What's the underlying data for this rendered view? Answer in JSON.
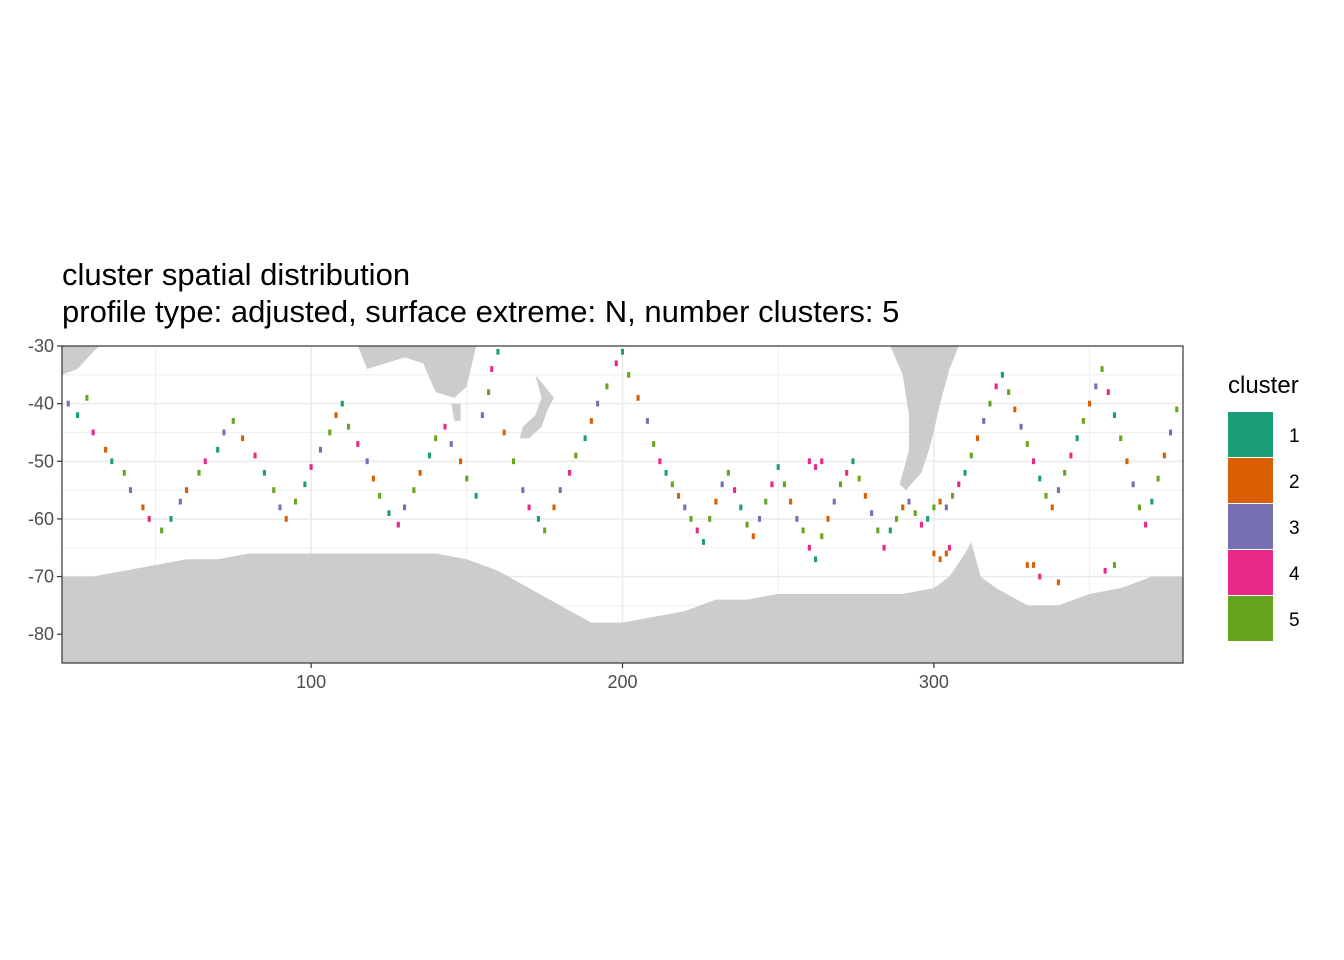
{
  "chart_data": {
    "type": "heatmap",
    "title": "cluster spatial distribution",
    "subtitle": "profile type: adjusted, surface extreme: N, number clusters: 5",
    "xlabel": "",
    "ylabel": "",
    "xlim": [
      20,
      380
    ],
    "ylim": [
      -85,
      -30
    ],
    "x_ticks": [
      100,
      200,
      300
    ],
    "y_ticks": [
      -30,
      -40,
      -50,
      -60,
      -70,
      -80
    ],
    "x_tick_labels": [
      "100",
      "200",
      "300"
    ],
    "y_tick_labels": [
      "-30",
      "-40",
      "-50",
      "-60",
      "-70",
      "-80"
    ],
    "grid": true,
    "cell_size_deg": 1,
    "land_color": "#cccccc",
    "legend": {
      "title": "cluster",
      "placement": "right",
      "entries": [
        {
          "label": "1",
          "color": "#1b9e77"
        },
        {
          "label": "2",
          "color": "#d95f02"
        },
        {
          "label": "3",
          "color": "#7570b3"
        },
        {
          "label": "4",
          "color": "#e7298a"
        },
        {
          "label": "5",
          "color": "#66a61e"
        }
      ]
    },
    "antarctica_coast": [
      [
        20,
        -70
      ],
      [
        30,
        -70
      ],
      [
        40,
        -69
      ],
      [
        50,
        -68
      ],
      [
        60,
        -67
      ],
      [
        70,
        -67
      ],
      [
        80,
        -66
      ],
      [
        90,
        -66
      ],
      [
        100,
        -66
      ],
      [
        110,
        -66
      ],
      [
        120,
        -66
      ],
      [
        130,
        -66
      ],
      [
        140,
        -66
      ],
      [
        150,
        -67
      ],
      [
        160,
        -69
      ],
      [
        170,
        -72
      ],
      [
        180,
        -75
      ],
      [
        190,
        -78
      ],
      [
        200,
        -78
      ],
      [
        210,
        -77
      ],
      [
        220,
        -76
      ],
      [
        230,
        -74
      ],
      [
        240,
        -74
      ],
      [
        250,
        -73
      ],
      [
        260,
        -73
      ],
      [
        270,
        -73
      ],
      [
        280,
        -73
      ],
      [
        290,
        -73
      ],
      [
        300,
        -72
      ],
      [
        305,
        -70
      ],
      [
        310,
        -66
      ],
      [
        312,
        -64
      ],
      [
        315,
        -70
      ],
      [
        320,
        -72
      ],
      [
        330,
        -75
      ],
      [
        340,
        -75
      ],
      [
        350,
        -73
      ],
      [
        360,
        -72
      ],
      [
        370,
        -70
      ],
      [
        380,
        -70
      ]
    ],
    "land_masses": [
      {
        "name": "south-america",
        "points": [
          [
            286,
            -30
          ],
          [
            290,
            -35
          ],
          [
            292,
            -42
          ],
          [
            292,
            -48
          ],
          [
            289,
            -54
          ],
          [
            291,
            -55
          ],
          [
            296,
            -52
          ],
          [
            299,
            -47
          ],
          [
            302,
            -40
          ],
          [
            305,
            -34
          ],
          [
            308,
            -30
          ]
        ]
      },
      {
        "name": "australia",
        "points": [
          [
            115,
            -30
          ],
          [
            118,
            -34
          ],
          [
            130,
            -32
          ],
          [
            136,
            -33
          ],
          [
            140,
            -38
          ],
          [
            146,
            -39
          ],
          [
            150,
            -37
          ],
          [
            153,
            -30
          ]
        ]
      },
      {
        "name": "tasmania",
        "points": [
          [
            145,
            -40
          ],
          [
            148,
            -40
          ],
          [
            148,
            -43
          ],
          [
            146,
            -43
          ]
        ]
      },
      {
        "name": "new-zealand",
        "points": [
          [
            172,
            -35
          ],
          [
            175,
            -37
          ],
          [
            178,
            -39
          ],
          [
            176,
            -41
          ],
          [
            174,
            -44
          ],
          [
            170,
            -46
          ],
          [
            167,
            -46
          ],
          [
            168,
            -44
          ],
          [
            172,
            -42
          ],
          [
            174,
            -39
          ]
        ]
      },
      {
        "name": "africa-tip",
        "points": [
          [
            20,
            -30
          ],
          [
            20,
            -35
          ],
          [
            25,
            -34
          ],
          [
            30,
            -31
          ],
          [
            32,
            -30
          ]
        ]
      }
    ],
    "cluster_cells_note": "lon/lat/cluster triples, one per 1-degree cell",
    "cluster_cells": [
      [
        22,
        -40,
        3
      ],
      [
        25,
        -42,
        1
      ],
      [
        28,
        -39,
        5
      ],
      [
        30,
        -45,
        4
      ],
      [
        34,
        -48,
        2
      ],
      [
        36,
        -50,
        1
      ],
      [
        40,
        -52,
        5
      ],
      [
        42,
        -55,
        3
      ],
      [
        46,
        -58,
        2
      ],
      [
        48,
        -60,
        4
      ],
      [
        52,
        -62,
        5
      ],
      [
        55,
        -60,
        1
      ],
      [
        58,
        -57,
        3
      ],
      [
        60,
        -55,
        2
      ],
      [
        64,
        -52,
        5
      ],
      [
        66,
        -50,
        4
      ],
      [
        70,
        -48,
        1
      ],
      [
        72,
        -45,
        3
      ],
      [
        75,
        -43,
        5
      ],
      [
        78,
        -46,
        2
      ],
      [
        82,
        -49,
        4
      ],
      [
        85,
        -52,
        1
      ],
      [
        88,
        -55,
        5
      ],
      [
        90,
        -58,
        3
      ],
      [
        92,
        -60,
        2
      ],
      [
        95,
        -57,
        5
      ],
      [
        98,
        -54,
        1
      ],
      [
        100,
        -51,
        4
      ],
      [
        103,
        -48,
        3
      ],
      [
        106,
        -45,
        5
      ],
      [
        108,
        -42,
        2
      ],
      [
        110,
        -40,
        1
      ],
      [
        112,
        -44,
        5
      ],
      [
        115,
        -47,
        4
      ],
      [
        118,
        -50,
        3
      ],
      [
        120,
        -53,
        2
      ],
      [
        122,
        -56,
        5
      ],
      [
        125,
        -59,
        1
      ],
      [
        128,
        -61,
        4
      ],
      [
        130,
        -58,
        3
      ],
      [
        133,
        -55,
        5
      ],
      [
        135,
        -52,
        2
      ],
      [
        138,
        -49,
        1
      ],
      [
        140,
        -46,
        5
      ],
      [
        143,
        -44,
        4
      ],
      [
        145,
        -47,
        3
      ],
      [
        148,
        -50,
        2
      ],
      [
        150,
        -53,
        5
      ],
      [
        153,
        -56,
        1
      ],
      [
        155,
        -42,
        3
      ],
      [
        157,
        -38,
        5
      ],
      [
        158,
        -34,
        4
      ],
      [
        160,
        -31,
        1
      ],
      [
        162,
        -45,
        2
      ],
      [
        165,
        -50,
        5
      ],
      [
        168,
        -55,
        3
      ],
      [
        170,
        -58,
        4
      ],
      [
        173,
        -60,
        1
      ],
      [
        175,
        -62,
        5
      ],
      [
        178,
        -58,
        2
      ],
      [
        180,
        -55,
        3
      ],
      [
        183,
        -52,
        4
      ],
      [
        185,
        -49,
        5
      ],
      [
        188,
        -46,
        1
      ],
      [
        190,
        -43,
        2
      ],
      [
        192,
        -40,
        3
      ],
      [
        195,
        -37,
        5
      ],
      [
        198,
        -33,
        4
      ],
      [
        200,
        -31,
        1
      ],
      [
        202,
        -35,
        5
      ],
      [
        205,
        -39,
        2
      ],
      [
        208,
        -43,
        3
      ],
      [
        210,
        -47,
        5
      ],
      [
        212,
        -50,
        4
      ],
      [
        214,
        -52,
        1
      ],
      [
        216,
        -54,
        5
      ],
      [
        218,
        -56,
        2
      ],
      [
        220,
        -58,
        3
      ],
      [
        222,
        -60,
        5
      ],
      [
        224,
        -62,
        4
      ],
      [
        226,
        -64,
        1
      ],
      [
        228,
        -60,
        5
      ],
      [
        230,
        -57,
        2
      ],
      [
        232,
        -54,
        3
      ],
      [
        234,
        -52,
        5
      ],
      [
        236,
        -55,
        4
      ],
      [
        238,
        -58,
        1
      ],
      [
        240,
        -61,
        5
      ],
      [
        242,
        -63,
        2
      ],
      [
        244,
        -60,
        3
      ],
      [
        246,
        -57,
        5
      ],
      [
        248,
        -54,
        4
      ],
      [
        250,
        -51,
        1
      ],
      [
        252,
        -54,
        5
      ],
      [
        254,
        -57,
        2
      ],
      [
        256,
        -60,
        3
      ],
      [
        258,
        -62,
        5
      ],
      [
        260,
        -65,
        4
      ],
      [
        262,
        -67,
        1
      ],
      [
        264,
        -63,
        5
      ],
      [
        266,
        -60,
        2
      ],
      [
        268,
        -57,
        3
      ],
      [
        270,
        -54,
        5
      ],
      [
        272,
        -52,
        4
      ],
      [
        274,
        -50,
        1
      ],
      [
        276,
        -53,
        5
      ],
      [
        278,
        -56,
        2
      ],
      [
        280,
        -59,
        3
      ],
      [
        282,
        -62,
        5
      ],
      [
        284,
        -65,
        4
      ],
      [
        286,
        -62,
        1
      ],
      [
        288,
        -60,
        5
      ],
      [
        290,
        -58,
        2
      ],
      [
        292,
        -57,
        3
      ],
      [
        294,
        -59,
        5
      ],
      [
        296,
        -61,
        4
      ],
      [
        298,
        -60,
        1
      ],
      [
        300,
        -58,
        5
      ],
      [
        302,
        -57,
        2
      ],
      [
        304,
        -58,
        3
      ],
      [
        306,
        -56,
        5
      ],
      [
        308,
        -54,
        4
      ],
      [
        310,
        -52,
        1
      ],
      [
        312,
        -49,
        5
      ],
      [
        314,
        -46,
        2
      ],
      [
        316,
        -43,
        3
      ],
      [
        318,
        -40,
        5
      ],
      [
        320,
        -37,
        4
      ],
      [
        322,
        -35,
        1
      ],
      [
        324,
        -38,
        5
      ],
      [
        326,
        -41,
        2
      ],
      [
        328,
        -44,
        3
      ],
      [
        330,
        -47,
        5
      ],
      [
        332,
        -50,
        4
      ],
      [
        334,
        -53,
        1
      ],
      [
        336,
        -56,
        5
      ],
      [
        338,
        -58,
        2
      ],
      [
        340,
        -55,
        3
      ],
      [
        342,
        -52,
        5
      ],
      [
        344,
        -49,
        4
      ],
      [
        346,
        -46,
        1
      ],
      [
        348,
        -43,
        5
      ],
      [
        350,
        -40,
        2
      ],
      [
        352,
        -37,
        3
      ],
      [
        354,
        -34,
        5
      ],
      [
        356,
        -38,
        4
      ],
      [
        358,
        -42,
        1
      ],
      [
        360,
        -46,
        5
      ],
      [
        362,
        -50,
        2
      ],
      [
        364,
        -54,
        3
      ],
      [
        366,
        -58,
        5
      ],
      [
        368,
        -61,
        4
      ],
      [
        370,
        -57,
        1
      ],
      [
        372,
        -53,
        5
      ],
      [
        374,
        -49,
        2
      ],
      [
        376,
        -45,
        3
      ],
      [
        378,
        -41,
        5
      ],
      [
        260,
        -50,
        4
      ],
      [
        262,
        -51,
        4
      ],
      [
        264,
        -50,
        4
      ],
      [
        300,
        -66,
        2
      ],
      [
        302,
        -67,
        2
      ],
      [
        304,
        -66,
        2
      ],
      [
        305,
        -65,
        4
      ],
      [
        330,
        -68,
        2
      ],
      [
        332,
        -68,
        2
      ],
      [
        334,
        -70,
        4
      ],
      [
        340,
        -71,
        2
      ],
      [
        355,
        -69,
        4
      ],
      [
        358,
        -68,
        5
      ]
    ]
  }
}
